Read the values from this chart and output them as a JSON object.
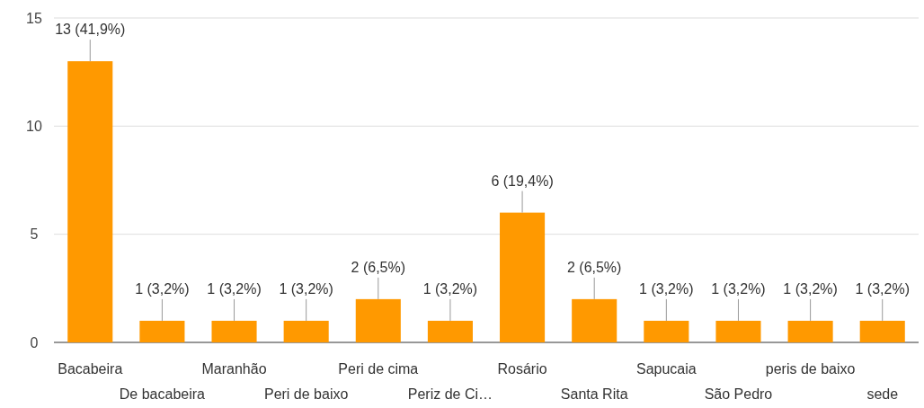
{
  "chart_data": {
    "type": "bar",
    "categories": [
      "Bacabeira",
      "De bacabeira",
      "Maranhão",
      "Peri de baixo",
      "Peri de cima",
      "Periz de Ci…",
      "Rosário",
      "Santa Rita",
      "Sapucaia",
      "São Pedro",
      "peris de baixo",
      "sede"
    ],
    "values": [
      13,
      1,
      1,
      1,
      2,
      1,
      6,
      2,
      1,
      1,
      1,
      1
    ],
    "value_labels": [
      "13 (41,9%)",
      "1 (3,2%)",
      "1 (3,2%)",
      "1 (3,2%)",
      "2 (6,5%)",
      "1 (3,2%)",
      "6 (19,4%)",
      "2 (6,5%)",
      "1 (3,2%)",
      "1 (3,2%)",
      "1 (3,2%)",
      "1 (3,2%)"
    ],
    "color": "#ff9900",
    "ylim": [
      0,
      15
    ],
    "yticks": [
      0,
      5,
      10,
      15
    ],
    "grid": "y"
  }
}
